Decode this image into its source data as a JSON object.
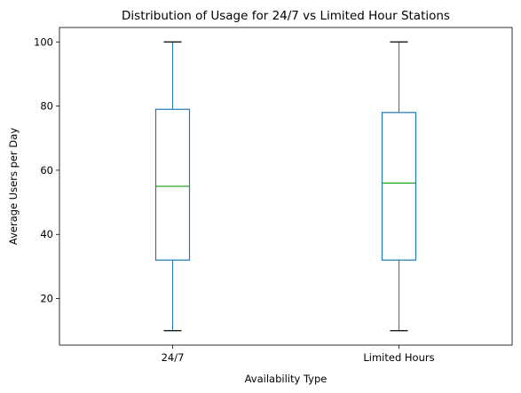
{
  "chart_data": {
    "type": "box",
    "title": "Distribution of Usage for 24/7 vs Limited Hour Stations",
    "xlabel": "Availability Type",
    "ylabel": "Average Users per Day",
    "categories": [
      "24/7",
      "Limited Hours"
    ],
    "boxes": [
      {
        "category": "24/7",
        "whisker_low": 10,
        "q1": 32,
        "median": 55,
        "q3": 79,
        "whisker_high": 100
      },
      {
        "category": "Limited Hours",
        "whisker_low": 10,
        "q1": 32,
        "median": 56,
        "q3": 78,
        "whisker_high": 100
      }
    ],
    "ylim": [
      5.5,
      104.5
    ],
    "yticks": [
      20,
      40,
      60,
      80,
      100
    ],
    "grid": false,
    "colors": {
      "box": "#1f77b4",
      "median": "#2ca02c",
      "cap": "#000000",
      "axes": "#000000"
    }
  }
}
